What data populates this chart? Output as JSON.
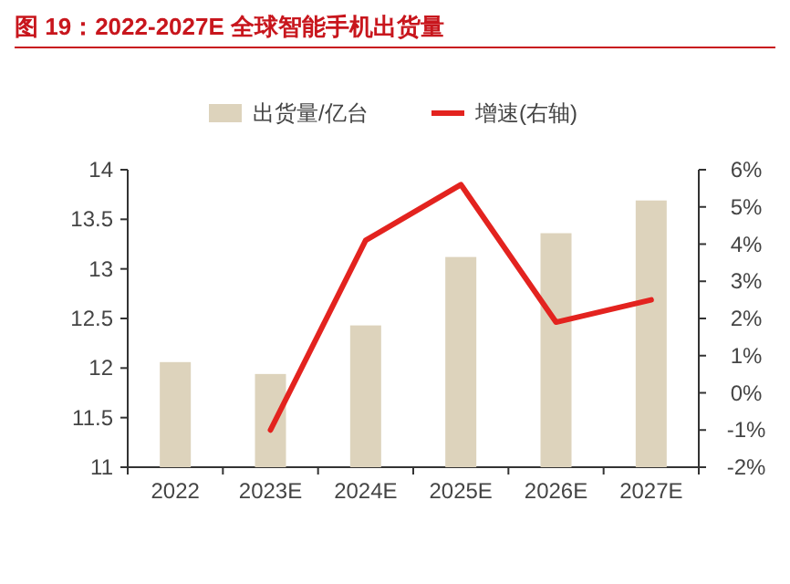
{
  "chart_data": {
    "type": "bar",
    "title": "图 19：2022-2027E 全球智能手机出货量",
    "categories": [
      "2022",
      "2023E",
      "2024E",
      "2025E",
      "2026E",
      "2027E"
    ],
    "series": [
      {
        "name": "出货量/亿台",
        "color": "#ddd3bc",
        "values": [
          12.06,
          11.94,
          12.43,
          13.12,
          13.36,
          13.69
        ]
      },
      {
        "name": "增速(右轴)",
        "type": "line",
        "axis": "y2",
        "color": "#e3231f",
        "values": [
          null,
          -1.0,
          4.1,
          5.6,
          1.9,
          2.5
        ]
      }
    ],
    "ylim": [
      11,
      14
    ],
    "yticks": [
      11,
      11.5,
      12,
      12.5,
      13,
      13.5,
      14
    ],
    "y2lim": [
      -2,
      6
    ],
    "y2ticks": [
      {
        "value": -2,
        "label": "-2%"
      },
      {
        "value": -1,
        "label": "-1%"
      },
      {
        "value": 0,
        "label": "0%"
      },
      {
        "value": 1,
        "label": "1%"
      },
      {
        "value": 2,
        "label": "2%"
      },
      {
        "value": 3,
        "label": "3%"
      },
      {
        "value": 4,
        "label": "4%"
      },
      {
        "value": 5,
        "label": "5%"
      },
      {
        "value": 6,
        "label": "6%"
      }
    ],
    "legend": "top"
  }
}
